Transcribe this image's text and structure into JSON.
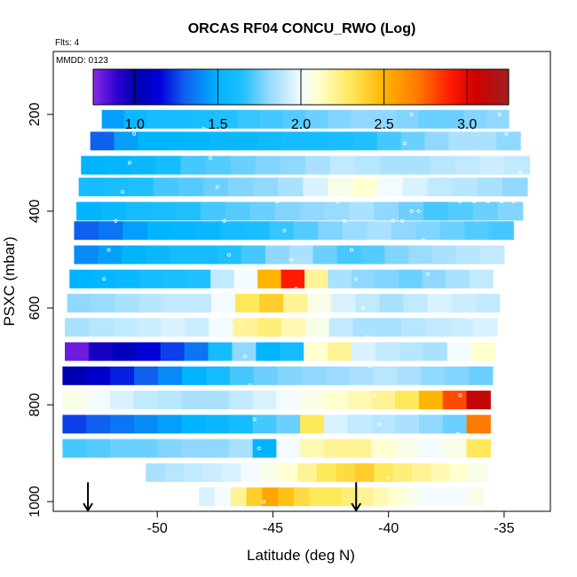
{
  "chart_data": {
    "type": "heatmap",
    "title": "ORCAS RF04 CONCU_RWO (Log)",
    "subtitle_flts": "Flts: 4",
    "subtitle_mmdd": "MMDD: 0123",
    "xlabel": "Latitude (deg N)",
    "ylabel": "PSXC (mbar)",
    "xlim": [
      -54.5,
      -33.0
    ],
    "ylim": [
      1020,
      70
    ],
    "y_reversed": true,
    "x_ticks": [
      -50,
      -45,
      -40,
      -35
    ],
    "x_tick_labels": [
      "-50",
      "-45",
      "-40",
      "-35"
    ],
    "y_ticks": [
      200,
      400,
      600,
      800,
      1000
    ],
    "y_tick_labels": [
      "200",
      "400",
      "600",
      "800",
      "1000"
    ],
    "colorbar": {
      "range": [
        0.75,
        3.25
      ],
      "ticks": [
        1.0,
        1.5,
        2.0,
        2.5,
        3.0
      ],
      "tick_labels": [
        "1.0",
        "1.5",
        "2.0",
        "2.5",
        "3.0"
      ],
      "stops": [
        [
          0.75,
          "#8a2be2"
        ],
        [
          0.9,
          "#2a00d0"
        ],
        [
          1.0,
          "#0000b0"
        ],
        [
          1.15,
          "#0000d8"
        ],
        [
          1.3,
          "#1060f0"
        ],
        [
          1.5,
          "#00b4ff"
        ],
        [
          1.65,
          "#20c0ff"
        ],
        [
          1.8,
          "#90d8ff"
        ],
        [
          2.0,
          "#f2fbff"
        ],
        [
          2.1,
          "#ffffd0"
        ],
        [
          2.3,
          "#ffe85a"
        ],
        [
          2.5,
          "#ffb400"
        ],
        [
          2.7,
          "#ff7a00"
        ],
        [
          2.9,
          "#ff1a00"
        ],
        [
          3.05,
          "#d00000"
        ],
        [
          3.25,
          "#a02020"
        ]
      ]
    },
    "rows": [
      {
        "p": 210,
        "x0": -52.4,
        "x1": -34.8,
        "v": [
          1.45,
          1.55,
          1.6,
          1.6,
          1.62,
          1.65,
          1.68,
          1.7,
          1.72,
          1.75,
          1.78,
          1.8,
          1.8,
          1.78,
          1.75,
          1.75,
          1.78,
          1.8
        ]
      },
      {
        "p": 255,
        "x0": -52.9,
        "x1": -34.3,
        "v": [
          1.3,
          1.45,
          1.5,
          1.5,
          1.52,
          1.55,
          1.55,
          1.58,
          1.6,
          1.6,
          1.62,
          1.65,
          1.7,
          1.75,
          1.8,
          1.85,
          1.85,
          1.8
        ]
      },
      {
        "p": 305,
        "x0": -53.3,
        "x1": -33.9,
        "v": [
          1.5,
          1.52,
          1.55,
          1.6,
          1.7,
          1.72,
          1.75,
          1.78,
          1.8,
          1.85,
          1.9,
          1.88,
          1.85,
          1.85,
          1.88,
          1.9,
          1.92,
          1.9
        ]
      },
      {
        "p": 350,
        "x0": -53.4,
        "x1": -34.0,
        "v": [
          1.6,
          1.62,
          1.65,
          1.7,
          1.72,
          1.75,
          1.78,
          1.8,
          1.85,
          1.95,
          2.05,
          2.1,
          2.0,
          1.95,
          1.9,
          1.88,
          1.85,
          1.8
        ]
      },
      {
        "p": 400,
        "x0": -53.5,
        "x1": -34.2,
        "v": [
          1.5,
          1.55,
          1.6,
          1.62,
          1.65,
          1.7,
          1.72,
          1.75,
          1.78,
          1.8,
          1.82,
          1.85,
          1.8,
          1.75,
          1.7,
          1.72,
          1.75,
          1.78
        ]
      },
      {
        "p": 440,
        "x0": -53.6,
        "x1": -34.6,
        "v": [
          1.3,
          1.35,
          1.45,
          1.5,
          1.52,
          1.55,
          1.6,
          1.62,
          1.68,
          1.72,
          1.78,
          1.82,
          1.85,
          1.8,
          1.78,
          1.75,
          1.72,
          1.7
        ]
      },
      {
        "p": 490,
        "x0": -53.6,
        "x1": -35.0,
        "v": [
          1.4,
          1.45,
          1.5,
          1.55,
          1.6,
          1.6,
          1.65,
          1.7,
          1.8,
          1.85,
          1.75,
          1.7,
          1.72,
          1.78,
          1.82,
          1.85,
          1.88,
          1.9
        ]
      },
      {
        "p": 540,
        "x0": -53.8,
        "x1": -35.5,
        "v": [
          1.5,
          1.52,
          1.55,
          1.6,
          1.62,
          1.65,
          1.9,
          2.0,
          2.5,
          2.9,
          2.2,
          1.85,
          1.8,
          1.78,
          1.75,
          1.8,
          1.85,
          1.9
        ]
      },
      {
        "p": 590,
        "x0": -53.9,
        "x1": -35.2,
        "v": [
          1.8,
          1.82,
          1.85,
          1.88,
          1.9,
          1.9,
          2.0,
          2.3,
          2.4,
          2.2,
          2.05,
          1.95,
          1.9,
          1.85,
          1.9,
          1.95,
          1.92,
          1.9
        ]
      },
      {
        "p": 640,
        "x0": -54.0,
        "x1": -35.3,
        "v": [
          1.85,
          1.88,
          1.9,
          1.92,
          1.95,
          1.92,
          2.0,
          2.2,
          2.25,
          2.15,
          2.05,
          1.9,
          1.85,
          1.85,
          1.88,
          1.9,
          1.92,
          1.95
        ]
      },
      {
        "p": 690,
        "x0": -54.0,
        "x1": -35.4,
        "v": [
          0.8,
          0.95,
          1.05,
          1.15,
          1.25,
          1.35,
          1.6,
          1.8,
          1.5,
          1.6,
          2.1,
          2.2,
          1.95,
          1.9,
          1.88,
          1.85,
          2.0,
          2.1
        ]
      },
      {
        "p": 740,
        "x0": -54.1,
        "x1": -35.5,
        "v": [
          1.0,
          1.1,
          1.2,
          1.3,
          1.4,
          1.5,
          1.6,
          1.7,
          1.75,
          1.78,
          1.8,
          1.82,
          1.85,
          1.88,
          1.85,
          1.8,
          1.78,
          1.75
        ]
      },
      {
        "p": 790,
        "x0": -54.1,
        "x1": -35.6,
        "v": [
          2.05,
          2.0,
          1.95,
          1.9,
          1.88,
          1.85,
          1.85,
          1.9,
          1.95,
          2.0,
          2.05,
          2.1,
          2.15,
          2.2,
          2.3,
          2.5,
          2.8,
          3.1
        ]
      },
      {
        "p": 840,
        "x0": -54.1,
        "x1": -35.6,
        "v": [
          1.25,
          1.3,
          1.35,
          1.4,
          1.45,
          1.5,
          1.55,
          1.6,
          1.7,
          1.75,
          2.3,
          1.95,
          1.9,
          1.88,
          1.85,
          1.8,
          1.75,
          2.7
        ]
      },
      {
        "p": 890,
        "x0": -54.1,
        "x1": -35.6,
        "v": [
          1.7,
          1.72,
          1.75,
          1.75,
          1.78,
          1.8,
          1.8,
          1.85,
          1.5,
          2.0,
          2.15,
          2.2,
          2.2,
          2.1,
          2.05,
          2.0,
          2.05,
          2.3
        ]
      },
      {
        "p": 940,
        "x0": -50.5,
        "x1": -35.7,
        "v": [
          1.85,
          1.88,
          1.9,
          1.92,
          1.95,
          2.0,
          2.05,
          2.1,
          2.2,
          2.3,
          2.35,
          2.4,
          2.3,
          2.25,
          2.2,
          2.15,
          2.1,
          2.05
        ]
      },
      {
        "p": 990,
        "x0": -48.2,
        "x1": -35.9,
        "v": [
          1.95,
          2.0,
          2.2,
          2.4,
          2.55,
          2.45,
          2.35,
          2.3,
          2.3,
          2.25,
          2.2,
          2.15,
          2.1,
          2.05,
          2.0,
          2.0,
          2.0,
          2.05
        ]
      }
    ],
    "flight_track_points": [
      [
        -51.9,
        180
      ],
      [
        -51.2,
        180
      ],
      [
        -50.4,
        180
      ],
      [
        -49.6,
        180
      ],
      [
        -48.8,
        180
      ],
      [
        -48.3,
        180
      ],
      [
        -48.0,
        230
      ],
      [
        -47.7,
        290
      ],
      [
        -47.4,
        350
      ],
      [
        -47.1,
        420
      ],
      [
        -46.9,
        490
      ],
      [
        -46.6,
        560
      ],
      [
        -46.4,
        630
      ],
      [
        -46.2,
        700
      ],
      [
        -46.0,
        760
      ],
      [
        -45.8,
        830
      ],
      [
        -45.6,
        890
      ],
      [
        -45.5,
        960
      ],
      [
        -45.4,
        1000
      ],
      [
        -44.8,
        380
      ],
      [
        -44.5,
        440
      ],
      [
        -44.2,
        500
      ],
      [
        -44.0,
        560
      ],
      [
        -42.2,
        380
      ],
      [
        -41.9,
        420
      ],
      [
        -41.6,
        480
      ],
      [
        -41.4,
        540
      ],
      [
        -41.1,
        600
      ],
      [
        -40.9,
        660
      ],
      [
        -40.8,
        720
      ],
      [
        -40.6,
        780
      ],
      [
        -40.4,
        840
      ],
      [
        -40.2,
        900
      ],
      [
        -40.0,
        950
      ],
      [
        -39.8,
        420
      ],
      [
        -39.4,
        420
      ],
      [
        -39.0,
        400
      ],
      [
        -38.7,
        400
      ],
      [
        -38.5,
        460
      ],
      [
        -38.3,
        530
      ],
      [
        -39.3,
        260
      ],
      [
        -39.0,
        200
      ],
      [
        -38.6,
        180
      ],
      [
        -37.8,
        180
      ],
      [
        -37.0,
        180
      ],
      [
        -36.2,
        180
      ],
      [
        -35.6,
        180
      ],
      [
        -35.2,
        200
      ],
      [
        -34.9,
        240
      ],
      [
        -34.6,
        280
      ],
      [
        -34.3,
        320
      ],
      [
        -36.9,
        380
      ],
      [
        -36.3,
        380
      ],
      [
        -35.7,
        380
      ],
      [
        -35.1,
        380
      ],
      [
        -34.6,
        380
      ],
      [
        -36.5,
        620
      ],
      [
        -36.7,
        700
      ],
      [
        -36.9,
        780
      ],
      [
        -37.0,
        860
      ],
      [
        -37.1,
        920
      ],
      [
        -37.2,
        980
      ],
      [
        -51.0,
        240
      ],
      [
        -51.2,
        300
      ],
      [
        -51.5,
        360
      ],
      [
        -51.8,
        420
      ],
      [
        -52.1,
        480
      ],
      [
        -52.3,
        540
      ]
    ],
    "arrows": [
      {
        "x": -53.0,
        "p_top": 960,
        "p_bottom": 1020
      },
      {
        "x": -41.4,
        "p_top": 960,
        "p_bottom": 1020
      }
    ]
  }
}
